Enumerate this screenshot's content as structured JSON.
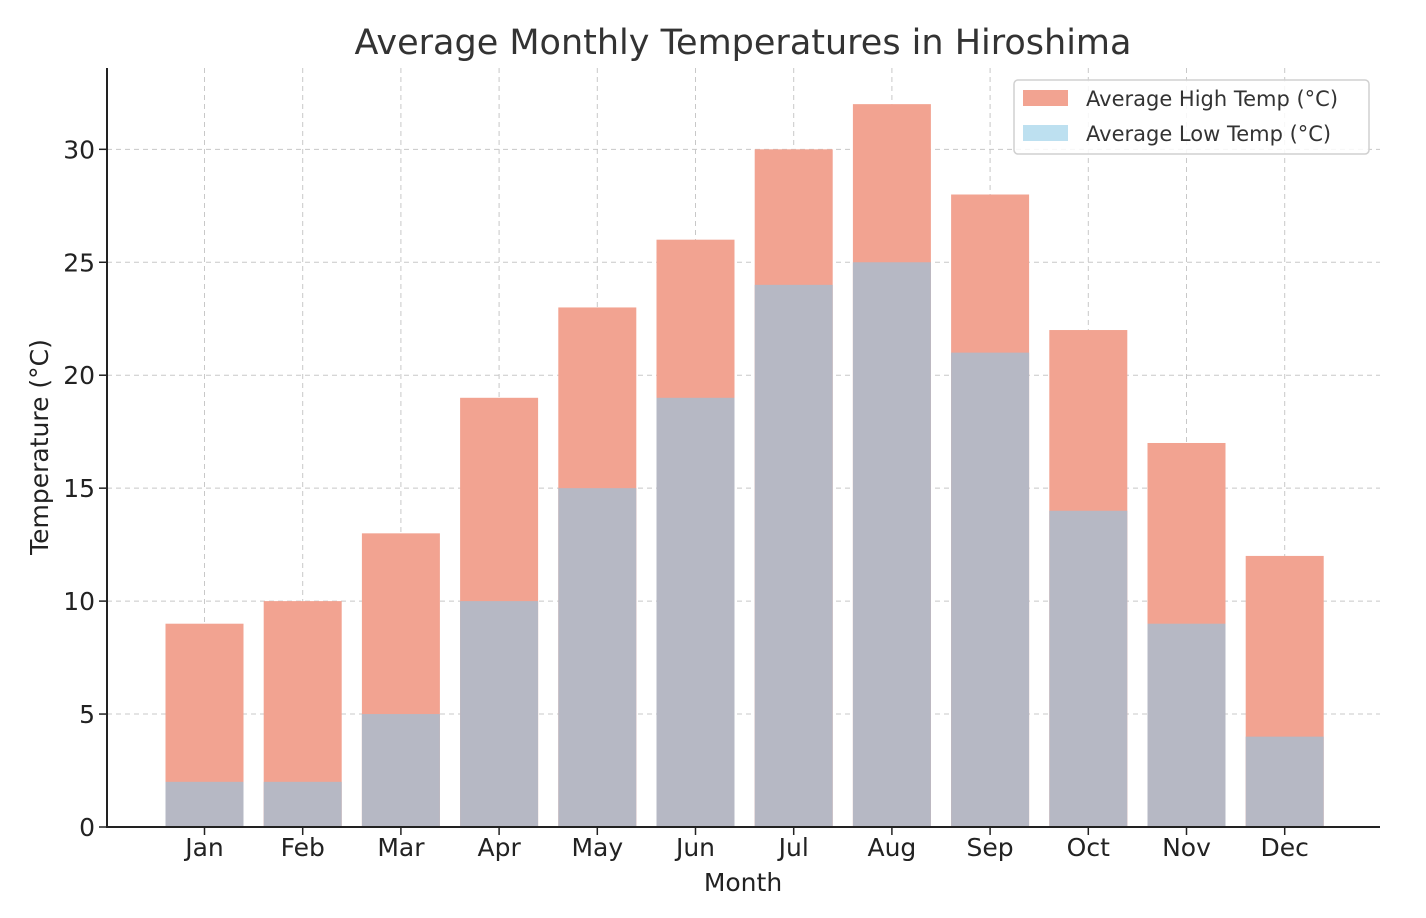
{
  "chart_data": {
    "type": "bar",
    "title": "Average Monthly Temperatures in Hiroshima",
    "xlabel": "Month",
    "ylabel": "Temperature (°C)",
    "categories": [
      "Jan",
      "Feb",
      "Mar",
      "Apr",
      "May",
      "Jun",
      "Jul",
      "Aug",
      "Sep",
      "Oct",
      "Nov",
      "Dec"
    ],
    "series": [
      {
        "name": "Average High Temp (°C)",
        "values": [
          9,
          10,
          13,
          19,
          23,
          26,
          30,
          32,
          28,
          22,
          17,
          12
        ],
        "color": "#f2a391"
      },
      {
        "name": "Average Low Temp (°C)",
        "values": [
          2,
          2,
          5,
          10,
          15,
          19,
          24,
          25,
          21,
          14,
          9,
          4
        ],
        "color": "#b6b8c4",
        "legend_color": "#bde0f0"
      }
    ],
    "ylim": [
      0,
      33.6
    ],
    "yticks": [
      0,
      5,
      10,
      15,
      20,
      25,
      30
    ],
    "grid": true,
    "legend_position": "top-right"
  }
}
